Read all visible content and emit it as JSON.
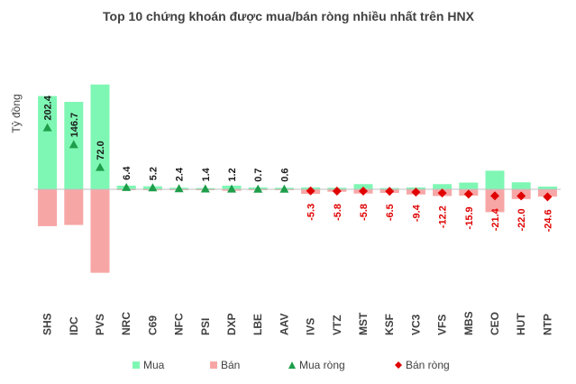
{
  "chart_data": {
    "type": "bar",
    "title": "Top 10 chứng khoán được mua/bán ròng nhiều nhất trên HNX",
    "ylabel": "Tỷ đồng",
    "categories": [
      "SHS",
      "IDC",
      "PVS",
      "NRC",
      "C69",
      "NFC",
      "PSI",
      "DXP",
      "LBE",
      "AAV",
      "IVS",
      "VTZ",
      "MST",
      "KSF",
      "VC3",
      "VFS",
      "MBS",
      "CEO",
      "HUT",
      "NTP"
    ],
    "series": [
      {
        "name": "Mua",
        "values": [
          306,
          287,
          344,
          12,
          10,
          5,
          4,
          12,
          6,
          5,
          6,
          5,
          17,
          4,
          6,
          17,
          22,
          61,
          23,
          9
        ]
      },
      {
        "name": "Bán",
        "values": [
          -121,
          -117,
          -274,
          -2,
          -2,
          -1,
          -1,
          -5,
          -2,
          -2,
          -15,
          -8,
          -14,
          -12,
          -17,
          -22,
          -21,
          -75,
          -32,
          -24
        ]
      },
      {
        "name": "Mua ròng",
        "values": [
          202.4,
          146.7,
          72.0,
          6.4,
          5.2,
          2.4,
          1.4,
          1.2,
          0.7,
          0.6,
          null,
          null,
          null,
          null,
          null,
          null,
          null,
          null,
          null,
          null
        ]
      },
      {
        "name": "Bán ròng",
        "values": [
          null,
          null,
          null,
          null,
          null,
          null,
          null,
          null,
          null,
          null,
          -5.3,
          -5.8,
          -5.8,
          -6.5,
          -9.4,
          -12.2,
          -15.9,
          -21.4,
          -22.0,
          -24.6
        ]
      }
    ],
    "data_labels": [
      "202.4",
      "146.7",
      "72.0",
      "6.4",
      "5.2",
      "2.4",
      "1.4",
      "1.2",
      "0.7",
      "0.6",
      "-5.3",
      "-5.8",
      "-5.8",
      "-6.5",
      "-9.4",
      "-12.2",
      "-15.9",
      "-21.4",
      "-22.0",
      "-24.6"
    ],
    "ylim": [
      -280,
      350
    ],
    "grid": false,
    "legend_position": "bottom",
    "colors": {
      "Mua": "#7ff7b4",
      "Bán": "#f7a6a6",
      "Mua ròng": "#1e9e4a",
      "Bán ròng": "#e00000"
    }
  }
}
